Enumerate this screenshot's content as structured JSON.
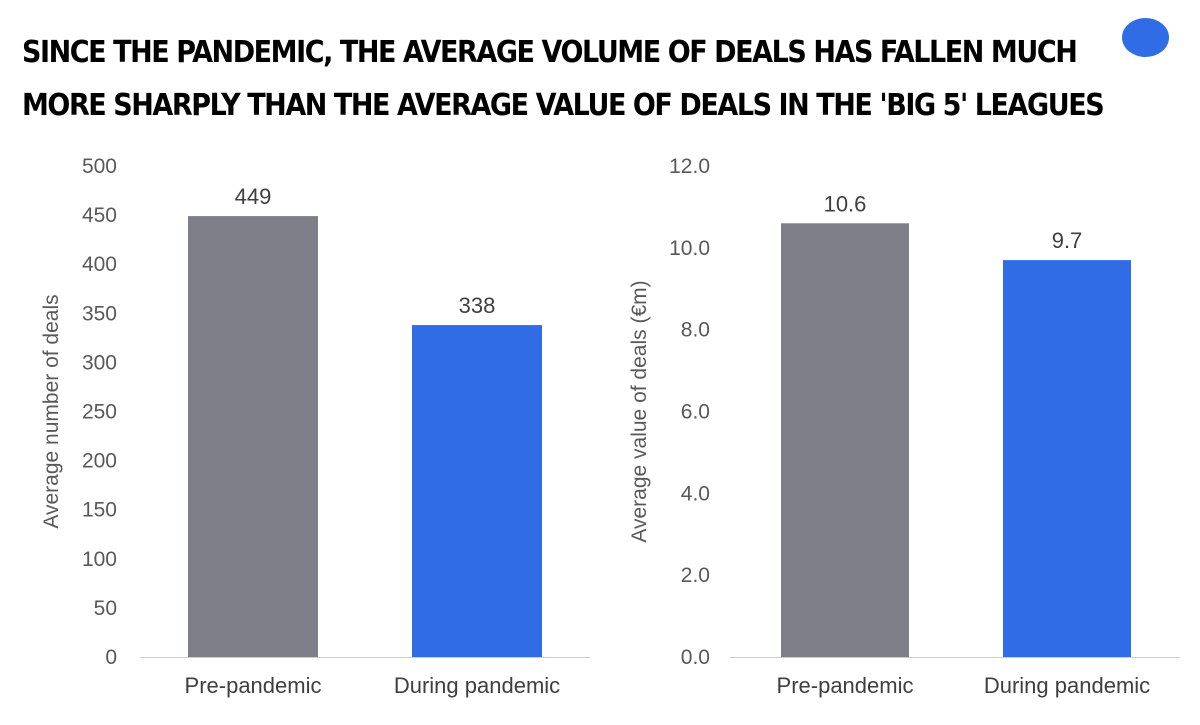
{
  "title": {
    "line1": "Since the pandemic, the average volume of deals has fallen much",
    "line2": "more sharply than the average value of deals in the 'Big 5' leagues"
  },
  "colors": {
    "pre": "#7f7f89",
    "during": "#2f6ce5",
    "brand": "#2f6ce5",
    "axis": "#cccccc"
  },
  "chart_data": [
    {
      "type": "bar",
      "categories": [
        "Pre-pandemic",
        "During pandemic"
      ],
      "values": [
        449,
        338
      ],
      "value_labels": [
        "449",
        "338"
      ],
      "title": "",
      "xlabel": "",
      "ylabel": "Average number of deals",
      "ylim": [
        0,
        500
      ],
      "yticks": [
        "0",
        "50",
        "100",
        "150",
        "200",
        "250",
        "300",
        "350",
        "400",
        "450",
        "500"
      ],
      "grid": false
    },
    {
      "type": "bar",
      "categories": [
        "Pre-pandemic",
        "During pandemic"
      ],
      "values": [
        10.6,
        9.7
      ],
      "value_labels": [
        "10.6",
        "9.7"
      ],
      "title": "",
      "xlabel": "",
      "ylabel": "Average value of deals (€m)",
      "ylim": [
        0,
        12
      ],
      "yticks": [
        "0.0",
        "2.0",
        "4.0",
        "6.0",
        "8.0",
        "10.0",
        "12.0"
      ],
      "grid": false
    }
  ]
}
